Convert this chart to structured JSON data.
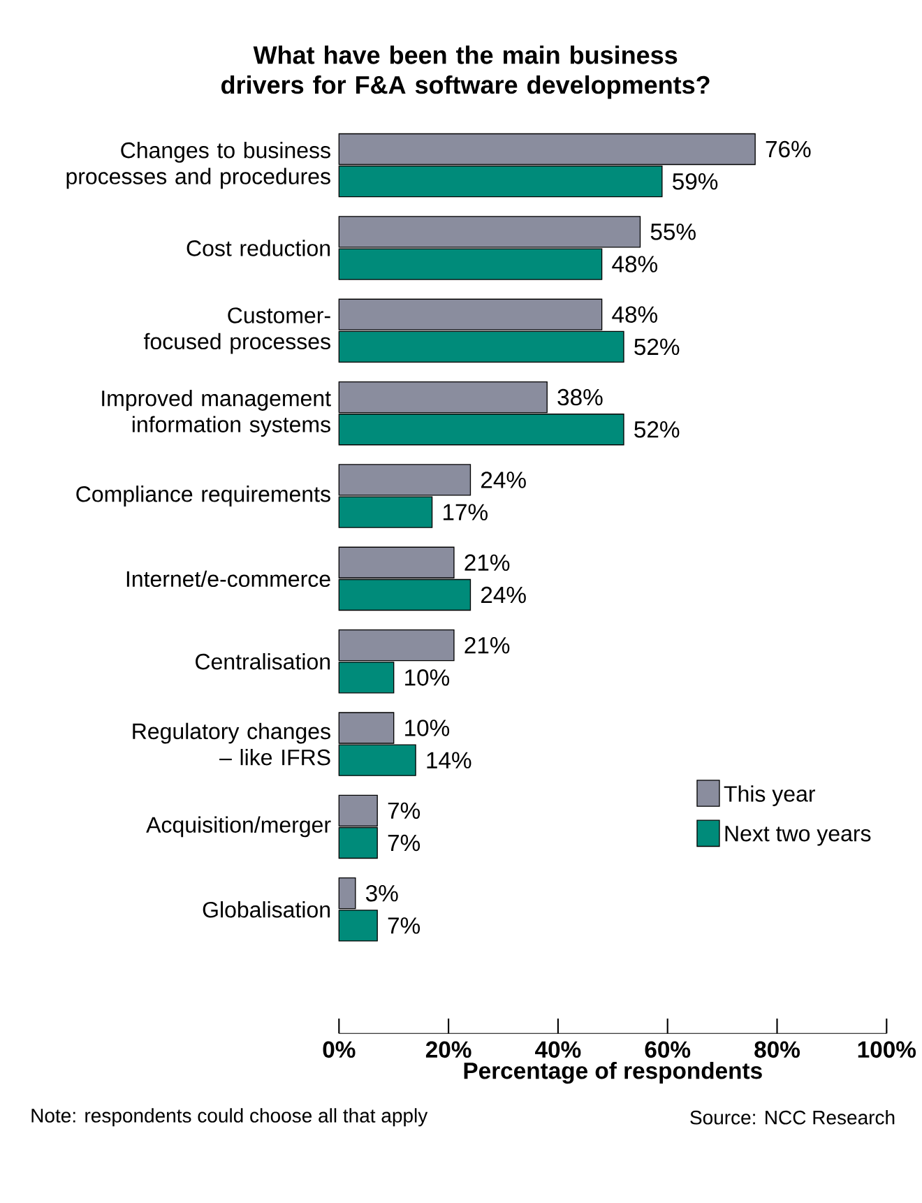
{
  "chart_data": {
    "type": "bar",
    "orientation": "horizontal",
    "title": "What have been the main business drivers for F&A software developments?",
    "categories": [
      "Changes to business processes and procedures",
      "Cost reduction",
      "Customer-focused processes",
      "Improved management information systems",
      "Compliance requirements",
      "Internet/e-commerce",
      "Centralisation",
      "Regulatory changes – like IFRS",
      "Acquisition/merger",
      "Globalisation"
    ],
    "series": [
      {
        "name": "This year",
        "color": "#8a8d9e",
        "values": [
          76,
          55,
          48,
          38,
          24,
          21,
          21,
          10,
          7,
          3
        ],
        "value_labels": [
          "76%",
          "55%",
          "48%",
          "38%",
          "24%",
          "21%",
          "21%",
          "10%",
          "7%",
          "3%"
        ]
      },
      {
        "name": "Next two years",
        "color": "#008b7a",
        "values": [
          59,
          48,
          52,
          52,
          17,
          24,
          10,
          14,
          7,
          7
        ],
        "value_labels": [
          "59%",
          "48%",
          "52%",
          "52%",
          "17%",
          "24%",
          "10%",
          "14%",
          "7%",
          "7%"
        ]
      }
    ],
    "xlabel": "Percentage of respondents",
    "xlim": [
      0,
      100
    ],
    "xticks": [
      {
        "value": 0,
        "label": "0%"
      },
      {
        "value": 20,
        "label": "20%"
      },
      {
        "value": 40,
        "label": "40%"
      },
      {
        "value": 60,
        "label": "60%"
      },
      {
        "value": 80,
        "label": "80%"
      },
      {
        "value": 100,
        "label": "100%"
      }
    ],
    "legend": "bottom right",
    "grid": false,
    "annotations": [
      "Note: respondents could choose all that apply",
      "Source: NCC Research"
    ]
  }
}
